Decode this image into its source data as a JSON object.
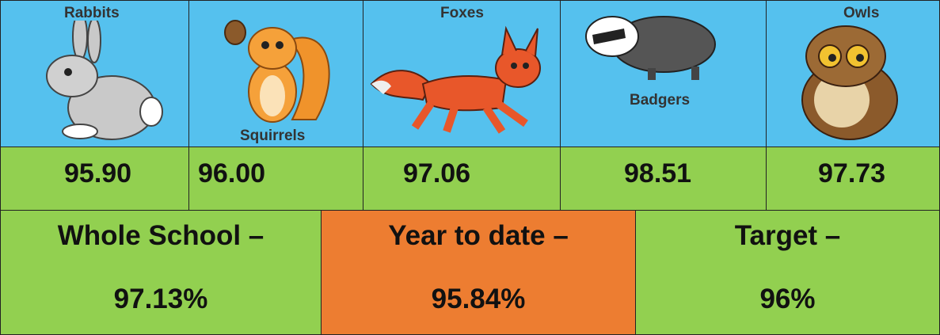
{
  "classes": [
    {
      "name": "Rabbits",
      "value": "95.90"
    },
    {
      "name": "Squirrels",
      "value": "96.00"
    },
    {
      "name": "Foxes",
      "value": "97.06"
    },
    {
      "name": "Badgers",
      "value": "98.51"
    },
    {
      "name": "Owls",
      "value": "97.73"
    }
  ],
  "summary": [
    {
      "label": "Whole School –",
      "value": "97.13%"
    },
    {
      "label": "Year to date –",
      "value": "95.84%"
    },
    {
      "label": "Target –",
      "value": "96%"
    }
  ]
}
